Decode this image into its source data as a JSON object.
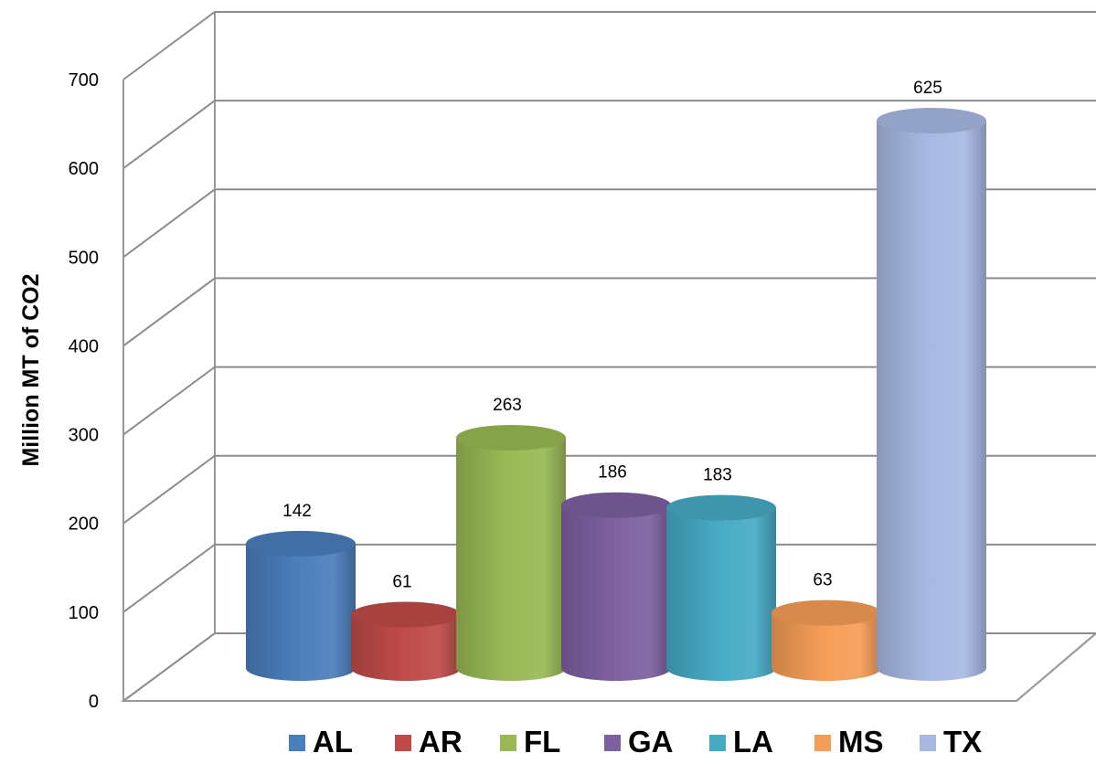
{
  "chart_data": {
    "type": "bar",
    "style": "3d-cylinder",
    "categories": [
      "AL",
      "AR",
      "FL",
      "GA",
      "LA",
      "MS",
      "TX"
    ],
    "values": [
      142,
      61,
      263,
      186,
      183,
      63,
      625
    ],
    "ylabel": "Million MT of CO2",
    "ylim": [
      0,
      700
    ],
    "yticks": [
      0,
      100,
      200,
      300,
      400,
      500,
      600,
      700
    ],
    "grid": true,
    "legend": "bottom",
    "colors": [
      "#4a7ebb",
      "#be4b48",
      "#98b954",
      "#7d60a0",
      "#46aac5",
      "#f59d56",
      "#a7b9e3"
    ]
  }
}
